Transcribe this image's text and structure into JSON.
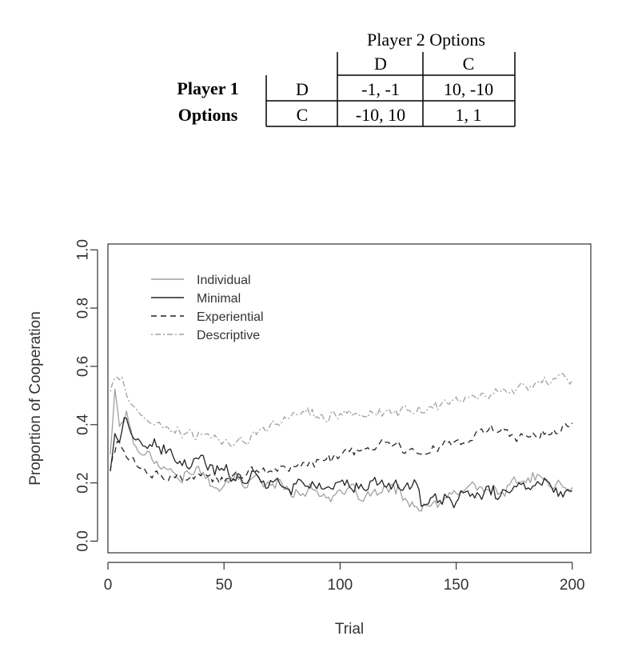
{
  "payoff_table": {
    "column_player_label": "Player 2 Options",
    "row_player_label_line1": "Player 1",
    "row_player_label_line2": "Options",
    "columns": [
      "D",
      "C"
    ],
    "rows": [
      {
        "option": "D",
        "cells": [
          "-1, -1",
          "10, -10"
        ]
      },
      {
        "option": "C",
        "cells": [
          "-10, 10",
          "1, 1"
        ]
      }
    ]
  },
  "chart_data": {
    "type": "line",
    "xlabel": "Trial",
    "ylabel": "Proportion of Cooperation",
    "xlim": [
      0,
      208
    ],
    "ylim": [
      -0.04,
      1.02
    ],
    "xticks": [
      0,
      50,
      100,
      150,
      200
    ],
    "yticks": [
      0.0,
      0.2,
      0.4,
      0.6,
      0.8,
      1.0
    ],
    "xtick_labels": [
      "0",
      "50",
      "100",
      "150",
      "200"
    ],
    "ytick_labels": [
      "0.0",
      "0.2",
      "0.4",
      "0.6",
      "0.8",
      "1.0"
    ],
    "grid": false,
    "legend_position": "top-left",
    "series": [
      {
        "name": "Individual",
        "style": "solid",
        "color": "#a0a0a0",
        "keypoints": [
          [
            1,
            0.3
          ],
          [
            3,
            0.52
          ],
          [
            5,
            0.4
          ],
          [
            8,
            0.44
          ],
          [
            12,
            0.32
          ],
          [
            18,
            0.3
          ],
          [
            25,
            0.25
          ],
          [
            30,
            0.22
          ],
          [
            38,
            0.24
          ],
          [
            45,
            0.2
          ],
          [
            50,
            0.18
          ],
          [
            55,
            0.22
          ],
          [
            60,
            0.19
          ],
          [
            65,
            0.22
          ],
          [
            70,
            0.2
          ],
          [
            75,
            0.19
          ],
          [
            80,
            0.17
          ],
          [
            85,
            0.18
          ],
          [
            90,
            0.17
          ],
          [
            95,
            0.16
          ],
          [
            100,
            0.15
          ],
          [
            105,
            0.17
          ],
          [
            110,
            0.15
          ],
          [
            115,
            0.16
          ],
          [
            120,
            0.17
          ],
          [
            125,
            0.18
          ],
          [
            130,
            0.13
          ],
          [
            133,
            0.12
          ],
          [
            135,
            0.1
          ],
          [
            140,
            0.12
          ],
          [
            145,
            0.14
          ],
          [
            150,
            0.16
          ],
          [
            155,
            0.19
          ],
          [
            160,
            0.18
          ],
          [
            165,
            0.18
          ],
          [
            170,
            0.16
          ],
          [
            175,
            0.2
          ],
          [
            180,
            0.21
          ],
          [
            185,
            0.22
          ],
          [
            190,
            0.2
          ],
          [
            195,
            0.19
          ],
          [
            200,
            0.17
          ]
        ],
        "noise": 0.03
      },
      {
        "name": "Minimal",
        "style": "solid",
        "color": "#222222",
        "keypoints": [
          [
            1,
            0.24
          ],
          [
            3,
            0.38
          ],
          [
            5,
            0.35
          ],
          [
            7,
            0.42
          ],
          [
            10,
            0.36
          ],
          [
            15,
            0.33
          ],
          [
            20,
            0.32
          ],
          [
            25,
            0.3
          ],
          [
            30,
            0.28
          ],
          [
            35,
            0.26
          ],
          [
            40,
            0.27
          ],
          [
            45,
            0.25
          ],
          [
            50,
            0.24
          ],
          [
            55,
            0.23
          ],
          [
            60,
            0.22
          ],
          [
            65,
            0.22
          ],
          [
            70,
            0.21
          ],
          [
            75,
            0.2
          ],
          [
            80,
            0.19
          ],
          [
            85,
            0.2
          ],
          [
            90,
            0.18
          ],
          [
            95,
            0.19
          ],
          [
            100,
            0.2
          ],
          [
            105,
            0.19
          ],
          [
            110,
            0.18
          ],
          [
            115,
            0.19
          ],
          [
            120,
            0.2
          ],
          [
            125,
            0.19
          ],
          [
            130,
            0.2
          ],
          [
            133,
            0.21
          ],
          [
            135,
            0.12
          ],
          [
            140,
            0.14
          ],
          [
            145,
            0.15
          ],
          [
            150,
            0.14
          ],
          [
            155,
            0.15
          ],
          [
            160,
            0.16
          ],
          [
            165,
            0.17
          ],
          [
            170,
            0.16
          ],
          [
            175,
            0.18
          ],
          [
            180,
            0.19
          ],
          [
            185,
            0.2
          ],
          [
            190,
            0.19
          ],
          [
            195,
            0.18
          ],
          [
            200,
            0.17
          ]
        ],
        "noise": 0.035
      },
      {
        "name": "Experiential",
        "style": "dashed",
        "color": "#222222",
        "keypoints": [
          [
            1,
            0.25
          ],
          [
            4,
            0.34
          ],
          [
            8,
            0.3
          ],
          [
            12,
            0.26
          ],
          [
            18,
            0.24
          ],
          [
            25,
            0.22
          ],
          [
            30,
            0.21
          ],
          [
            35,
            0.22
          ],
          [
            40,
            0.22
          ],
          [
            45,
            0.21
          ],
          [
            50,
            0.21
          ],
          [
            55,
            0.22
          ],
          [
            60,
            0.23
          ],
          [
            65,
            0.24
          ],
          [
            70,
            0.25
          ],
          [
            75,
            0.25
          ],
          [
            80,
            0.26
          ],
          [
            85,
            0.26
          ],
          [
            90,
            0.27
          ],
          [
            95,
            0.28
          ],
          [
            100,
            0.29
          ],
          [
            105,
            0.3
          ],
          [
            110,
            0.31
          ],
          [
            115,
            0.32
          ],
          [
            120,
            0.33
          ],
          [
            125,
            0.33
          ],
          [
            130,
            0.32
          ],
          [
            135,
            0.31
          ],
          [
            140,
            0.32
          ],
          [
            145,
            0.33
          ],
          [
            150,
            0.34
          ],
          [
            155,
            0.35
          ],
          [
            160,
            0.37
          ],
          [
            165,
            0.38
          ],
          [
            170,
            0.37
          ],
          [
            175,
            0.36
          ],
          [
            180,
            0.36
          ],
          [
            185,
            0.36
          ],
          [
            190,
            0.37
          ],
          [
            195,
            0.38
          ],
          [
            200,
            0.42
          ]
        ],
        "noise": 0.025
      },
      {
        "name": "Descriptive",
        "style": "dotdash",
        "color": "#a0a0a0",
        "keypoints": [
          [
            1,
            0.52
          ],
          [
            4,
            0.56
          ],
          [
            7,
            0.54
          ],
          [
            10,
            0.46
          ],
          [
            15,
            0.42
          ],
          [
            20,
            0.4
          ],
          [
            25,
            0.39
          ],
          [
            30,
            0.38
          ],
          [
            35,
            0.37
          ],
          [
            40,
            0.36
          ],
          [
            45,
            0.35
          ],
          [
            50,
            0.34
          ],
          [
            55,
            0.34
          ],
          [
            60,
            0.35
          ],
          [
            65,
            0.37
          ],
          [
            70,
            0.39
          ],
          [
            75,
            0.42
          ],
          [
            80,
            0.44
          ],
          [
            85,
            0.44
          ],
          [
            90,
            0.43
          ],
          [
            95,
            0.43
          ],
          [
            100,
            0.44
          ],
          [
            105,
            0.43
          ],
          [
            110,
            0.44
          ],
          [
            115,
            0.44
          ],
          [
            120,
            0.44
          ],
          [
            125,
            0.44
          ],
          [
            130,
            0.45
          ],
          [
            135,
            0.45
          ],
          [
            140,
            0.46
          ],
          [
            145,
            0.47
          ],
          [
            150,
            0.48
          ],
          [
            155,
            0.49
          ],
          [
            160,
            0.5
          ],
          [
            165,
            0.51
          ],
          [
            170,
            0.51
          ],
          [
            175,
            0.52
          ],
          [
            180,
            0.53
          ],
          [
            185,
            0.54
          ],
          [
            190,
            0.55
          ],
          [
            195,
            0.56
          ],
          [
            200,
            0.55
          ]
        ],
        "noise": 0.025
      }
    ]
  }
}
